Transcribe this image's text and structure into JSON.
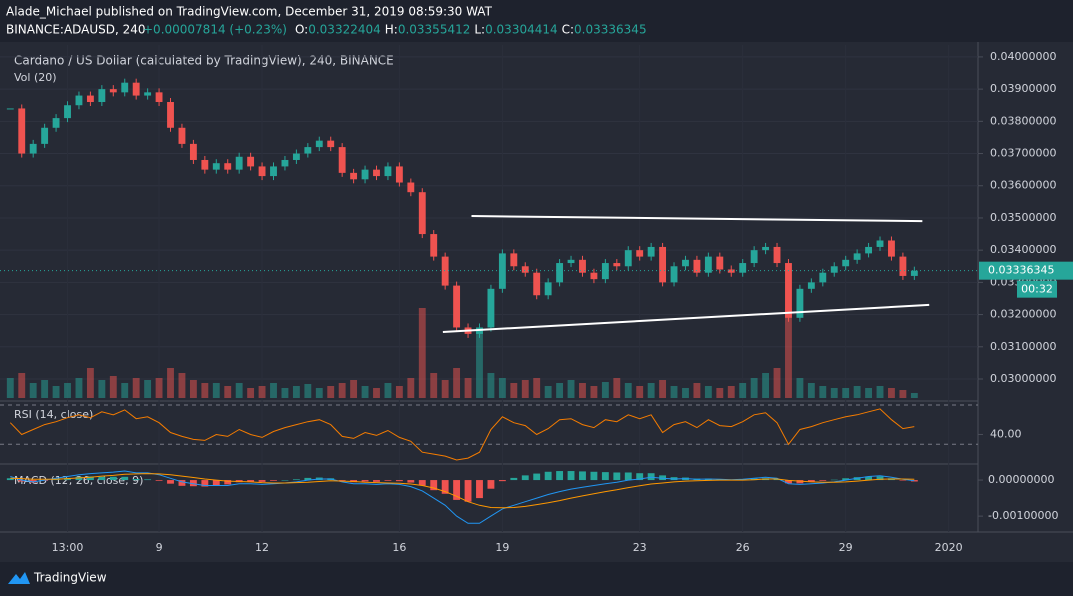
{
  "header": {
    "publisher": "Alade_Michael published on TradingView.com, December 31, 2019 08:59:30 WAT",
    "symbol": "BINANCE:ADAUSD, 240",
    "change": "+0.00007814 (+0.23%)",
    "ohlc": [
      {
        "key": "O:",
        "value": "0.03322404"
      },
      {
        "key": "H:",
        "value": "0.03355412"
      },
      {
        "key": "L:",
        "value": "0.03304414"
      },
      {
        "key": "C:",
        "value": "0.03336345"
      }
    ]
  },
  "footer": {
    "brand": "TradingView"
  },
  "chart_data": {
    "type": "candlestick",
    "title": "Cardano / US Dollar (calculated by TradingView), 240, BINANCE",
    "volume_label": "Vol (20)",
    "up_color": "#26a69a",
    "down_color": "#ef5350",
    "xlim": [
      -0.9,
      84.3
    ],
    "xticks": [
      {
        "value": 5,
        "label": "13:00"
      },
      {
        "value": 13,
        "label": "9"
      },
      {
        "value": 22,
        "label": "12"
      },
      {
        "value": 34,
        "label": "16"
      },
      {
        "value": 43,
        "label": "19"
      },
      {
        "value": 55,
        "label": "23"
      },
      {
        "value": 64,
        "label": "26"
      },
      {
        "value": 73,
        "label": "29"
      },
      {
        "value": 82,
        "label": "2020"
      }
    ],
    "ylim": [
      0.02941,
      0.04037
    ],
    "yticks": [
      {
        "value": 0.04,
        "label": "0.04000000"
      },
      {
        "value": 0.039,
        "label": "0.03900000"
      },
      {
        "value": 0.038,
        "label": "0.03800000"
      },
      {
        "value": 0.037,
        "label": "0.03700000"
      },
      {
        "value": 0.036,
        "label": "0.03600000"
      },
      {
        "value": 0.035,
        "label": "0.03500000"
      },
      {
        "value": 0.034,
        "label": "0.03400000"
      },
      {
        "value": 0.033,
        "label": "0.03300000"
      },
      {
        "value": 0.032,
        "label": "0.03200000"
      },
      {
        "value": 0.031,
        "label": "0.03100000"
      },
      {
        "value": 0.03,
        "label": "0.03000000"
      }
    ],
    "close": [
      0.0384,
      0.037,
      0.0373,
      0.0378,
      0.0381,
      0.0385,
      0.0388,
      0.0386,
      0.039,
      0.0389,
      0.0392,
      0.0388,
      0.0389,
      0.0386,
      0.0378,
      0.0373,
      0.0368,
      0.0365,
      0.0367,
      0.0365,
      0.0369,
      0.0366,
      0.0363,
      0.0366,
      0.0368,
      0.037,
      0.0372,
      0.0374,
      0.0372,
      0.0364,
      0.0362,
      0.0365,
      0.0363,
      0.0366,
      0.0361,
      0.0358,
      0.0345,
      0.0338,
      0.0329,
      0.0316,
      0.0314,
      0.0316,
      0.0328,
      0.0339,
      0.0335,
      0.0333,
      0.0326,
      0.033,
      0.0336,
      0.0337,
      0.0333,
      0.0331,
      0.0336,
      0.0335,
      0.034,
      0.0338,
      0.0341,
      0.033,
      0.0335,
      0.0337,
      0.0333,
      0.0338,
      0.0334,
      0.0333,
      0.0336,
      0.034,
      0.0341,
      0.0336,
      0.0319,
      0.0328,
      0.033,
      0.0333,
      0.0335,
      0.0337,
      0.0339,
      0.0341,
      0.0343,
      0.0338,
      0.0332,
      0.03336345
    ],
    "volume": [
      20,
      25,
      15,
      18,
      12,
      15,
      20,
      30,
      18,
      22,
      15,
      20,
      18,
      20,
      30,
      25,
      18,
      15,
      15,
      12,
      15,
      10,
      12,
      15,
      10,
      12,
      14,
      10,
      12,
      15,
      18,
      12,
      10,
      15,
      12,
      20,
      90,
      25,
      18,
      30,
      20,
      70,
      25,
      20,
      15,
      18,
      20,
      12,
      15,
      18,
      15,
      12,
      16,
      20,
      15,
      12,
      15,
      18,
      12,
      10,
      15,
      12,
      10,
      12,
      15,
      20,
      25,
      30,
      90,
      20,
      15,
      12,
      10,
      10,
      12,
      10,
      12,
      10,
      8,
      5
    ],
    "price_tag": "0.03336345",
    "countdown": "00:32",
    "trendlines": [
      {
        "x": [
          40.3,
          79.7
        ],
        "y": [
          0.03506,
          0.0349
        ]
      },
      {
        "x": [
          37.8,
          80.3
        ],
        "y": [
          0.03146,
          0.0323
        ]
      }
    ],
    "rsi": {
      "label": "RSI (14, close)",
      "color": "#f57c00",
      "ylim": [
        12,
        73
      ],
      "yticks": [
        {
          "value": 40,
          "label": "40.00"
        }
      ],
      "bands": [
        70,
        30
      ],
      "values": [
        52,
        40,
        45,
        50,
        53,
        57,
        60,
        57,
        63,
        60,
        65,
        56,
        58,
        52,
        42,
        38,
        35,
        34,
        40,
        38,
        45,
        40,
        37,
        43,
        47,
        50,
        53,
        55,
        50,
        38,
        36,
        42,
        39,
        44,
        37,
        33,
        22,
        20,
        18,
        14,
        16,
        22,
        45,
        58,
        52,
        49,
        40,
        46,
        55,
        56,
        50,
        47,
        55,
        53,
        60,
        56,
        60,
        42,
        50,
        53,
        47,
        55,
        49,
        48,
        53,
        60,
        62,
        52,
        30,
        45,
        48,
        52,
        55,
        58,
        60,
        63,
        66,
        55,
        46,
        48
      ]
    },
    "macd": {
      "label": "MACD (12, 26, close, 9)",
      "ylim": [
        -0.00144,
        0.00039
      ],
      "yticks": [
        {
          "value": 0,
          "label": "0.00000000"
        },
        {
          "value": -0.001,
          "label": "-0.00100000"
        }
      ],
      "macd_color": "#2196f3",
      "signal_color": "#ff9800",
      "macd": [
        0.0001,
        0,
        -5e-05,
        0,
        5e-05,
        0.0001,
        0.00015,
        0.00018,
        0.0002,
        0.00022,
        0.00025,
        0.0002,
        0.0002,
        0.00015,
        5e-05,
        -5e-05,
        -0.0001,
        -0.00015,
        -0.00015,
        -0.00015,
        -0.0001,
        -0.0001,
        -0.00012,
        -0.0001,
        -8e-05,
        -5e-05,
        0,
        3e-05,
        3e-05,
        -5e-05,
        -0.0001,
        -0.0001,
        -0.00012,
        -0.0001,
        -0.00012,
        -0.00018,
        -0.0003,
        -0.0005,
        -0.0007,
        -0.001,
        -0.0012,
        -0.0012,
        -0.001,
        -0.0008,
        -0.0007,
        -0.0006,
        -0.0005,
        -0.0004,
        -0.00032,
        -0.00025,
        -0.0002,
        -0.00015,
        -0.0001,
        -6e-05,
        0,
        3e-05,
        8e-05,
        5e-05,
        3e-05,
        4e-05,
        2e-05,
        3e-05,
        2e-05,
        1e-05,
        2e-05,
        5e-05,
        8e-05,
        5e-05,
        -0.0001,
        -0.00012,
        -0.0001,
        -8e-05,
        -5e-05,
        0,
        5e-05,
        0.0001,
        0.00012,
        8e-05,
        2e-05,
        -2e-05
      ],
      "signal": [
        5e-05,
        4e-05,
        2e-05,
        2e-05,
        2e-05,
        4e-05,
        6e-05,
        8e-05,
        0.00011,
        0.00013,
        0.00016,
        0.00017,
        0.00018,
        0.00017,
        0.00015,
        0.00011,
        7e-05,
        3e-05,
        0,
        -3e-05,
        -4e-05,
        -5e-05,
        -7e-05,
        -8e-05,
        -8e-05,
        -7e-05,
        -6e-05,
        -4e-05,
        -2e-05,
        -3e-05,
        -4e-05,
        -6e-05,
        -7e-05,
        -8e-05,
        -9e-05,
        -0.00011,
        -0.00015,
        -0.00022,
        -0.00032,
        -0.00045,
        -0.0006,
        -0.0007,
        -0.00076,
        -0.00077,
        -0.00076,
        -0.00073,
        -0.00068,
        -0.00063,
        -0.00057,
        -0.0005,
        -0.00044,
        -0.00038,
        -0.00032,
        -0.00027,
        -0.00021,
        -0.00016,
        -0.00011,
        -8e-05,
        -5e-05,
        -3e-05,
        -2e-05,
        -1e-05,
        0,
        0,
        0,
        1e-05,
        3e-05,
        3e-05,
        -1e-05,
        -3e-05,
        -5e-05,
        -6e-05,
        -6e-05,
        -5e-05,
        -3e-05,
        0,
        2e-05,
        3e-05,
        3e-05,
        2e-05
      ],
      "histogram": [
        5e-05,
        -4e-05,
        -7e-05,
        -2e-05,
        3e-05,
        6e-05,
        9e-05,
        0.0001,
        9e-05,
        9e-05,
        9e-05,
        3e-05,
        2e-05,
        -2e-05,
        -0.0001,
        -0.00016,
        -0.00017,
        -0.00018,
        -0.00015,
        -0.00012,
        -6e-05,
        -5e-05,
        -5e-05,
        -2e-05,
        0,
        2e-05,
        6e-05,
        7e-05,
        5e-05,
        -2e-05,
        -6e-05,
        -4e-05,
        -5e-05,
        -2e-05,
        -3e-05,
        -7e-05,
        -0.00015,
        -0.00028,
        -0.00038,
        -0.00055,
        -0.0006,
        -0.0005,
        -0.00024,
        -3e-05,
        6e-05,
        0.00013,
        0.00018,
        0.00023,
        0.00025,
        0.00025,
        0.00024,
        0.00023,
        0.00022,
        0.00021,
        0.00021,
        0.00019,
        0.00019,
        0.00013,
        8e-05,
        7e-05,
        4e-05,
        4e-05,
        2e-05,
        1e-05,
        2e-05,
        4e-05,
        5e-05,
        2e-05,
        -9e-05,
        -9e-05,
        -5e-05,
        -2e-05,
        1e-05,
        5e-05,
        8e-05,
        0.0001,
        0.0001,
        5e-05,
        -1e-05,
        -4e-05
      ]
    }
  }
}
